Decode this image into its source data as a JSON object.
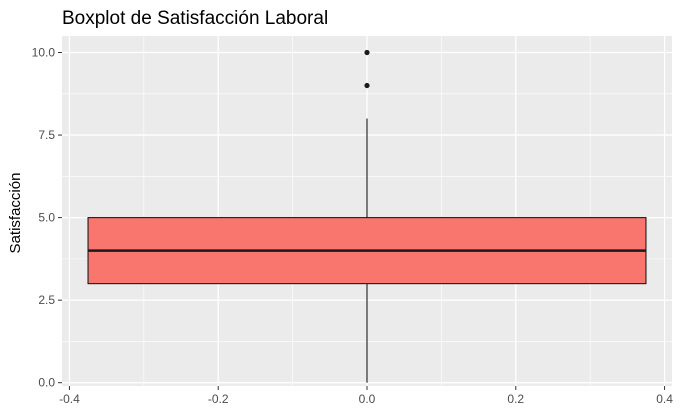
{
  "chart_data": {
    "type": "boxplot",
    "title": "Boxplot de Satisfacción Laboral",
    "xlabel": "",
    "ylabel": "Satisfacción",
    "x_ticks": [
      "-0.4",
      "-0.2",
      "0.0",
      "0.2",
      "0.4"
    ],
    "y_ticks": [
      "0.0",
      "2.5",
      "5.0",
      "7.5",
      "10.0"
    ],
    "xlim": [
      -0.41,
      0.41
    ],
    "ylim": [
      -0.1,
      10.5
    ],
    "grid": true,
    "box": {
      "x_center": 0,
      "width": 0.75,
      "min": 0,
      "q1": 3,
      "median": 4,
      "q3": 5,
      "max": 8,
      "outliers": [
        9,
        10
      ]
    },
    "colors": {
      "panel_background": "#ebebeb",
      "grid_major": "#ffffff",
      "box_fill": "#f8766d",
      "box_border": "#1a1a1a",
      "outlier": "#1a1a1a"
    }
  }
}
